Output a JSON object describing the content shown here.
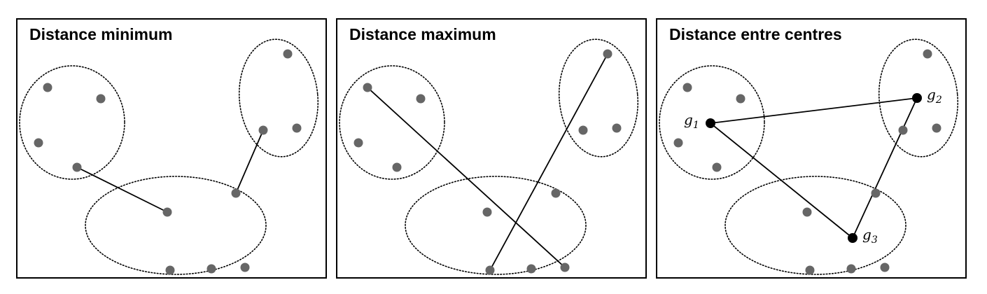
{
  "panels": [
    {
      "title": "Distance minimum"
    },
    {
      "title": "Distance maximum"
    },
    {
      "title": "Distance entre centres"
    }
  ],
  "centroids": [
    {
      "symbol": "g",
      "index": "1"
    },
    {
      "symbol": "g",
      "index": "2"
    },
    {
      "symbol": "g",
      "index": "3"
    }
  ],
  "colors": {
    "point": "#666666",
    "centroid": "#000000",
    "line": "#000000",
    "cluster_outline": "#000000",
    "frame": "#000000"
  }
}
